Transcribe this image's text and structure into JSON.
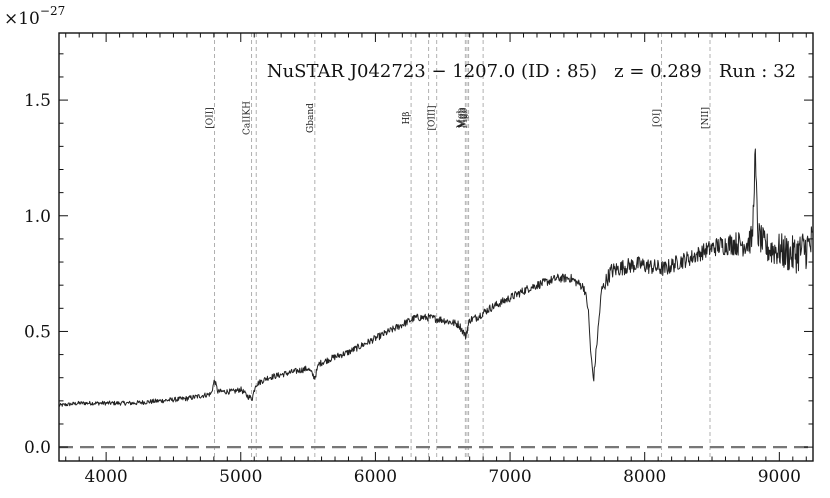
{
  "chart_data": {
    "type": "line",
    "title": "NuSTAR J042723 − 1207.0 (ID : 85)   z = 0.289   Run : 32",
    "xlabel": "",
    "ylabel": "",
    "y_multiplier_label": "×10",
    "y_multiplier_exponent": "−27",
    "xlim": [
      3650,
      9250
    ],
    "ylim": [
      -0.06,
      1.79
    ],
    "x_ticks": [
      {
        "value": 4000,
        "label": "4000"
      },
      {
        "value": 5000,
        "label": "5000"
      },
      {
        "value": 6000,
        "label": "6000"
      },
      {
        "value": 7000,
        "label": "7000"
      },
      {
        "value": 8000,
        "label": "8000"
      },
      {
        "value": 9000,
        "label": "9000"
      }
    ],
    "y_ticks": [
      {
        "value": 0.0,
        "label": "0.0"
      },
      {
        "value": 0.5,
        "label": "0.5"
      },
      {
        "value": 1.0,
        "label": "1.0"
      },
      {
        "value": 1.5,
        "label": "1.5"
      }
    ],
    "zero_line": 0.0,
    "spectrum_color": "#222222",
    "zero_line_color": "#777777",
    "emission_line_color": "#b0b0b0",
    "emission_lines": [
      {
        "label": "[OII]",
        "x": 4805
      },
      {
        "label": "CaIIKH",
        "x": 5080
      },
      {
        "label": "",
        "x": 5115
      },
      {
        "label": "Gband",
        "x": 5550
      },
      {
        "label": "Hβ",
        "x": 6265
      },
      {
        "label": "",
        "x": 6395
      },
      {
        "label": "[OIII]",
        "x": 6455
      },
      {
        "label": "Mgb",
        "x": 6668
      },
      {
        "label": "Mgb",
        "x": 6680
      },
      {
        "label": "Mgb",
        "x": 6692
      },
      {
        "label": "",
        "x": 6800
      },
      {
        "label": "[OI]",
        "x": 8125
      },
      {
        "label": "[NII]",
        "x": 8485
      }
    ],
    "series": [
      {
        "anchors": [
          [
            3650,
            0.18
          ],
          [
            3800,
            0.19
          ],
          [
            4000,
            0.19
          ],
          [
            4200,
            0.19
          ],
          [
            4400,
            0.2
          ],
          [
            4600,
            0.21
          ],
          [
            4780,
            0.23
          ],
          [
            4805,
            0.29
          ],
          [
            4830,
            0.24
          ],
          [
            4950,
            0.24
          ],
          [
            5000,
            0.25
          ],
          [
            5050,
            0.22
          ],
          [
            5085,
            0.21
          ],
          [
            5110,
            0.27
          ],
          [
            5200,
            0.3
          ],
          [
            5350,
            0.32
          ],
          [
            5500,
            0.34
          ],
          [
            5550,
            0.3
          ],
          [
            5580,
            0.36
          ],
          [
            5700,
            0.39
          ],
          [
            5800,
            0.41
          ],
          [
            5900,
            0.44
          ],
          [
            6000,
            0.47
          ],
          [
            6100,
            0.5
          ],
          [
            6200,
            0.53
          ],
          [
            6265,
            0.55
          ],
          [
            6300,
            0.56
          ],
          [
            6400,
            0.56
          ],
          [
            6500,
            0.55
          ],
          [
            6620,
            0.53
          ],
          [
            6670,
            0.48
          ],
          [
            6700,
            0.55
          ],
          [
            6750,
            0.56
          ],
          [
            6850,
            0.6
          ],
          [
            6950,
            0.63
          ],
          [
            7050,
            0.66
          ],
          [
            7150,
            0.69
          ],
          [
            7250,
            0.71
          ],
          [
            7350,
            0.73
          ],
          [
            7450,
            0.73
          ],
          [
            7550,
            0.69
          ],
          [
            7580,
            0.6
          ],
          [
            7600,
            0.4
          ],
          [
            7620,
            0.29
          ],
          [
            7645,
            0.45
          ],
          [
            7680,
            0.68
          ],
          [
            7750,
            0.76
          ],
          [
            7850,
            0.78
          ],
          [
            7950,
            0.79
          ],
          [
            8050,
            0.78
          ],
          [
            8150,
            0.77
          ],
          [
            8250,
            0.8
          ],
          [
            8350,
            0.82
          ],
          [
            8450,
            0.85
          ],
          [
            8550,
            0.87
          ],
          [
            8650,
            0.88
          ],
          [
            8750,
            0.88
          ],
          [
            8800,
            0.9
          ],
          [
            8820,
            1.27
          ],
          [
            8840,
            0.92
          ],
          [
            8900,
            0.86
          ],
          [
            9000,
            0.85
          ],
          [
            9100,
            0.83
          ],
          [
            9200,
            0.86
          ],
          [
            9250,
            0.88
          ]
        ]
      }
    ]
  }
}
